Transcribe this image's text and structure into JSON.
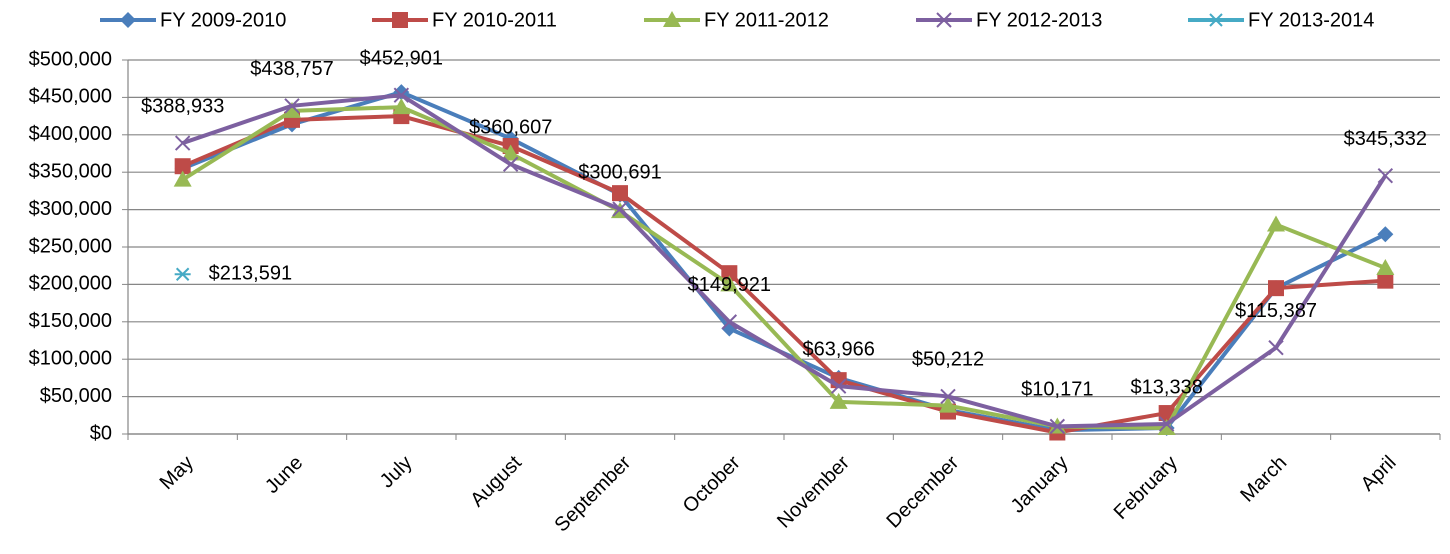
{
  "chart_data": {
    "type": "line",
    "categories": [
      "May",
      "June",
      "July",
      "August",
      "September",
      "October",
      "November",
      "December",
      "January",
      "February",
      "March",
      "April"
    ],
    "series": [
      {
        "name": "FY 2009-2010",
        "color": "#4a7ebb",
        "marker": "diamond",
        "values": [
          355000,
          414000,
          457000,
          395000,
          320000,
          141000,
          75000,
          32000,
          5000,
          8000,
          195000,
          267000
        ]
      },
      {
        "name": "FY 2010-2011",
        "color": "#be4b48",
        "marker": "square",
        "values": [
          358000,
          420000,
          425000,
          385000,
          322000,
          215000,
          72000,
          30000,
          2000,
          28000,
          195000,
          205000
        ]
      },
      {
        "name": "FY 2011-2012",
        "color": "#98b954",
        "marker": "triangle",
        "values": [
          340000,
          432000,
          437000,
          375000,
          298000,
          200000,
          43000,
          38000,
          10000,
          8000,
          280000,
          222000
        ]
      },
      {
        "name": "FY 2012-2013",
        "color": "#7d60a0",
        "marker": "x",
        "values": [
          388933,
          438757,
          452901,
          360607,
          300691,
          149921,
          63966,
          50212,
          10171,
          13338,
          115387,
          345332
        ],
        "value_labels": [
          "$388,933",
          "$438,757",
          "$452,901",
          "$360,607",
          "$300,691",
          "$149,921",
          "$63,966",
          "$50,212",
          "$10,171",
          "$13,338",
          "$115,387",
          "$345,332"
        ]
      },
      {
        "name": "FY 2013-2014",
        "color": "#46aac5",
        "marker": "asterisk",
        "values": [
          213591,
          null,
          null,
          null,
          null,
          null,
          null,
          null,
          null,
          null,
          null,
          null
        ],
        "value_labels": [
          "$213,591",
          null,
          null,
          null,
          null,
          null,
          null,
          null,
          null,
          null,
          null,
          null
        ]
      }
    ],
    "ylim": [
      0,
      500000
    ],
    "yticks": [
      {
        "value": 0,
        "label": "$0"
      },
      {
        "value": 50000,
        "label": "$50,000"
      },
      {
        "value": 100000,
        "label": "$100,000"
      },
      {
        "value": 150000,
        "label": "$150,000"
      },
      {
        "value": 200000,
        "label": "$200,000"
      },
      {
        "value": 250000,
        "label": "$250,000"
      },
      {
        "value": 300000,
        "label": "$300,000"
      },
      {
        "value": 350000,
        "label": "$350,000"
      },
      {
        "value": 400000,
        "label": "$400,000"
      },
      {
        "value": 450000,
        "label": "$450,000"
      },
      {
        "value": 500000,
        "label": "$500,000"
      }
    ],
    "grid": true,
    "legend": "top"
  }
}
